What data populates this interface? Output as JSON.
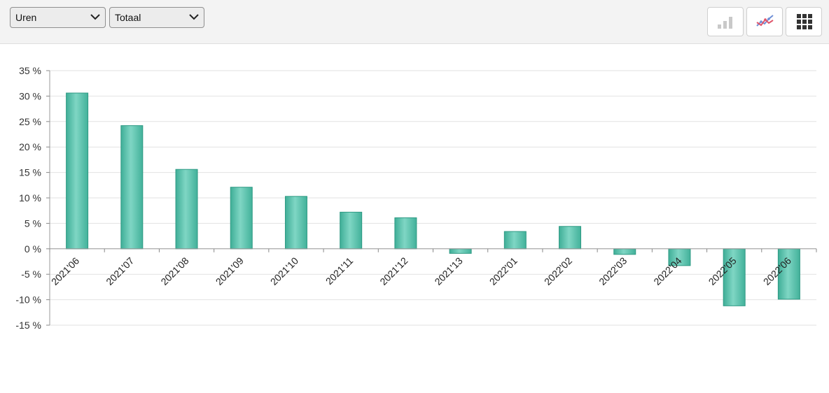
{
  "toolbar": {
    "metric_select": {
      "value": "Uren",
      "icon": "chevron-down-icon"
    },
    "scope_select": {
      "value": "Totaal",
      "icon": "chevron-down-icon"
    },
    "view_buttons": [
      {
        "name": "bar-chart-view-button",
        "icon": "bar-chart-icon",
        "active": false
      },
      {
        "name": "line-chart-view-button",
        "icon": "line-chart-icon",
        "active": false
      },
      {
        "name": "grid-view-button",
        "icon": "grid-icon",
        "active": true
      }
    ]
  },
  "chart_data": {
    "type": "bar",
    "title": "",
    "xlabel": "",
    "ylabel": "",
    "ylim": [
      -15,
      35
    ],
    "yticks": [
      35,
      30,
      25,
      20,
      15,
      10,
      5,
      0,
      -5,
      -10,
      -15
    ],
    "ytick_labels": [
      "35 %",
      "30 %",
      "25 %",
      "20 %",
      "15 %",
      "10 %",
      "5 %",
      "0 %",
      "-5 %",
      "-10 %",
      "-15 %"
    ],
    "grid": true,
    "categories": [
      "2021'06",
      "2021'07",
      "2021'08",
      "2021'09",
      "2021'10",
      "2021'11",
      "2021'12",
      "2021'13",
      "2022'01",
      "2022'02",
      "2022'03",
      "2022'04",
      "2022'05",
      "2022'06"
    ],
    "values": [
      30.6,
      24.2,
      15.6,
      12.1,
      10.3,
      7.2,
      6.1,
      -0.9,
      3.4,
      4.4,
      -1.1,
      -3.3,
      -11.2,
      -9.9
    ],
    "bar_color": "#5cc4ae",
    "bar_edge_color": "#2f9a84"
  }
}
